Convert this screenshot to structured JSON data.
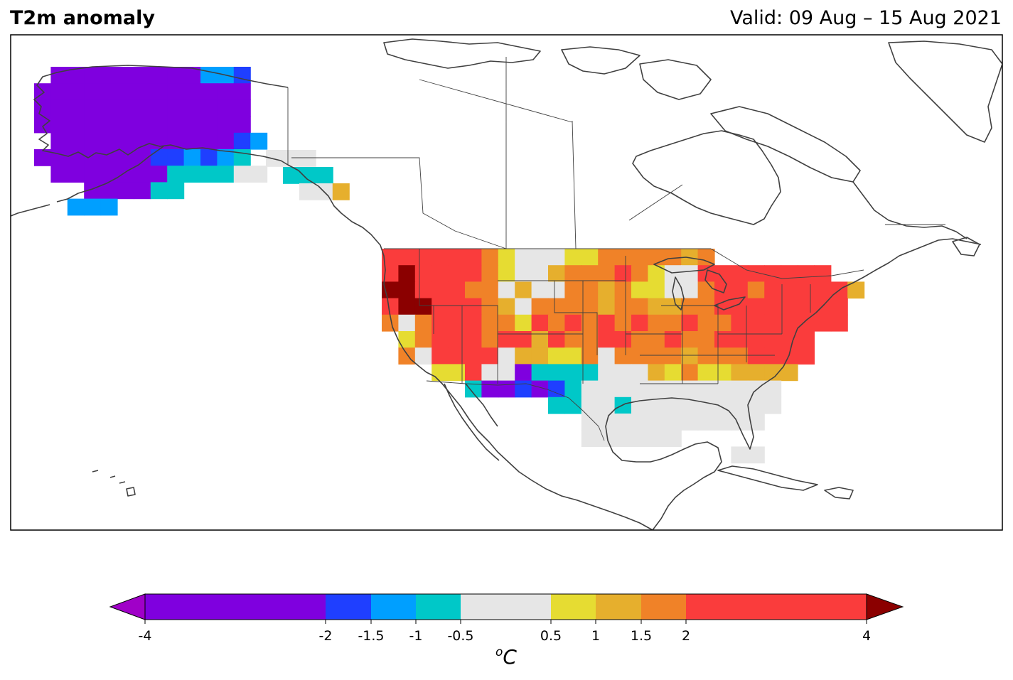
{
  "header": {
    "title": "T2m anomaly",
    "valid": "Valid: 09 Aug – 15 Aug 2021"
  },
  "colorbar": {
    "unit_label": "oC",
    "unit_base": "C",
    "unit_sup": "o",
    "ticks": [
      {
        "value": -4,
        "label": "-4"
      },
      {
        "value": -2,
        "label": "-2"
      },
      {
        "value": -1.5,
        "label": "-1.5"
      },
      {
        "value": -1,
        "label": "-1"
      },
      {
        "value": -0.5,
        "label": "-0.5"
      },
      {
        "value": 0.5,
        "label": "0.5"
      },
      {
        "value": 1,
        "label": "1"
      },
      {
        "value": 1.5,
        "label": "1.5"
      },
      {
        "value": 2,
        "label": "2"
      },
      {
        "value": 4,
        "label": "4"
      }
    ],
    "bins": [
      {
        "from": -4,
        "to": -2,
        "color": "#7F00DF"
      },
      {
        "from": -2,
        "to": -1.5,
        "color": "#1F3FFF"
      },
      {
        "from": -1.5,
        "to": -1,
        "color": "#009FFF"
      },
      {
        "from": -1,
        "to": -0.5,
        "color": "#00C8C8"
      },
      {
        "from": -0.5,
        "to": 0.5,
        "color": "#E6E6E6"
      },
      {
        "from": 0.5,
        "to": 1,
        "color": "#E6DC32"
      },
      {
        "from": 1,
        "to": 1.5,
        "color": "#E6AF2D"
      },
      {
        "from": 1.5,
        "to": 2,
        "color": "#F08228"
      },
      {
        "from": 2,
        "to": 4,
        "color": "#FA3C3C"
      }
    ],
    "under_color": "#A000C8",
    "over_color": "#8B0000"
  },
  "map": {
    "projection": "plate-carree",
    "lon_range": [
      -170,
      -50
    ],
    "lat_range": [
      10,
      75
    ],
    "grid_spacing_deg": 2
  }
}
